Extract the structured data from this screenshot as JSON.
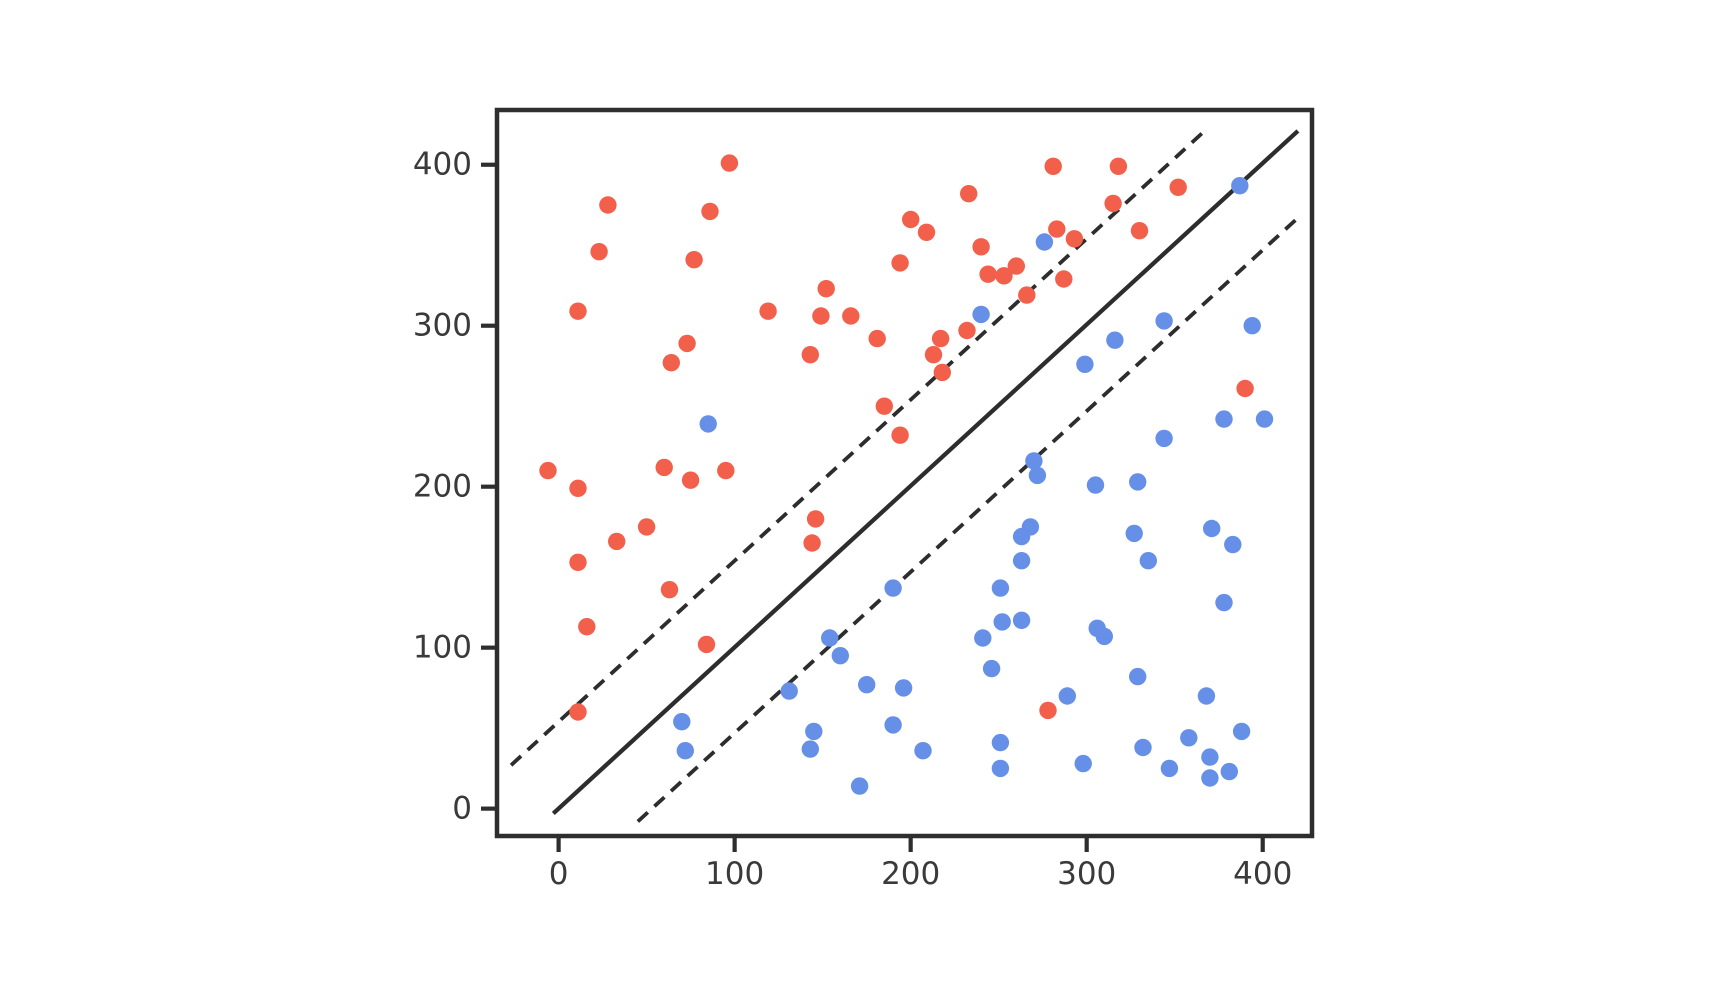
{
  "figure": {
    "background": "#ffffff"
  },
  "chart_data": {
    "type": "scatter",
    "title": "",
    "xlabel": "",
    "ylabel": "",
    "xlim": [
      -35,
      428
    ],
    "ylim": [
      -17,
      434
    ],
    "xticks": [
      0,
      100,
      200,
      300,
      400
    ],
    "yticks": [
      0,
      100,
      200,
      300,
      400
    ],
    "grid": false,
    "legend": "none",
    "axis_color": "#2E2E2E",
    "tick_label_color": "#3A3A3A",
    "tick_font_size": 31,
    "series": [
      {
        "name": "red-class",
        "color": "#F2604C",
        "marker": "circle",
        "marker_radius": 8.7,
        "points": [
          [
            97,
            401
          ],
          [
            28,
            375
          ],
          [
            86,
            371
          ],
          [
            23,
            346
          ],
          [
            77,
            341
          ],
          [
            200,
            366
          ],
          [
            194,
            339
          ],
          [
            11,
            309
          ],
          [
            152,
            323
          ],
          [
            149,
            306
          ],
          [
            166,
            306
          ],
          [
            119,
            309
          ],
          [
            181,
            292
          ],
          [
            73,
            289
          ],
          [
            64,
            277
          ],
          [
            143,
            282
          ],
          [
            185,
            250
          ],
          [
            194,
            232
          ],
          [
            -6,
            210
          ],
          [
            60,
            212
          ],
          [
            95,
            210
          ],
          [
            281,
            399
          ],
          [
            318,
            399
          ],
          [
            233,
            382
          ],
          [
            352,
            386
          ],
          [
            209,
            358
          ],
          [
            315,
            376
          ],
          [
            240,
            349
          ],
          [
            283,
            360
          ],
          [
            293,
            354
          ],
          [
            330,
            359
          ],
          [
            260,
            337
          ],
          [
            244,
            332
          ],
          [
            253,
            331
          ],
          [
            287,
            329
          ],
          [
            266,
            319
          ],
          [
            232,
            297
          ],
          [
            217,
            292
          ],
          [
            213,
            282
          ],
          [
            218,
            271
          ],
          [
            390,
            261
          ],
          [
            75,
            204
          ],
          [
            11,
            199
          ],
          [
            50,
            175
          ],
          [
            33,
            166
          ],
          [
            11,
            153
          ],
          [
            146,
            180
          ],
          [
            144,
            165
          ],
          [
            63,
            136
          ],
          [
            16,
            113
          ],
          [
            84,
            102
          ],
          [
            11,
            60
          ],
          [
            278,
            61
          ]
        ]
      },
      {
        "name": "blue-class",
        "color": "#6690E8",
        "marker": "circle",
        "marker_radius": 8.7,
        "points": [
          [
            85,
            239
          ],
          [
            387,
            387
          ],
          [
            276,
            352
          ],
          [
            240,
            307
          ],
          [
            344,
            303
          ],
          [
            316,
            291
          ],
          [
            299,
            276
          ],
          [
            394,
            300
          ],
          [
            378,
            242
          ],
          [
            401,
            242
          ],
          [
            344,
            230
          ],
          [
            190,
            137
          ],
          [
            154,
            106
          ],
          [
            160,
            95
          ],
          [
            131,
            73
          ],
          [
            175,
            77
          ],
          [
            196,
            75
          ],
          [
            145,
            48
          ],
          [
            143,
            37
          ],
          [
            190,
            52
          ],
          [
            171,
            14
          ],
          [
            70,
            54
          ],
          [
            72,
            36
          ],
          [
            270,
            216
          ],
          [
            272,
            207
          ],
          [
            305,
            201
          ],
          [
            329,
            203
          ],
          [
            268,
            175
          ],
          [
            263,
            169
          ],
          [
            263,
            154
          ],
          [
            327,
            171
          ],
          [
            335,
            154
          ],
          [
            371,
            174
          ],
          [
            383,
            164
          ],
          [
            251,
            137
          ],
          [
            378,
            128
          ],
          [
            252,
            116
          ],
          [
            263,
            117
          ],
          [
            241,
            106
          ],
          [
            306,
            112
          ],
          [
            310,
            107
          ],
          [
            246,
            87
          ],
          [
            329,
            82
          ],
          [
            289,
            70
          ],
          [
            368,
            70
          ],
          [
            388,
            48
          ],
          [
            358,
            44
          ],
          [
            207,
            36
          ],
          [
            251,
            41
          ],
          [
            251,
            25
          ],
          [
            298,
            28
          ],
          [
            332,
            38
          ],
          [
            347,
            25
          ],
          [
            370,
            32
          ],
          [
            370,
            19
          ],
          [
            381,
            23
          ]
        ]
      }
    ],
    "lines": [
      {
        "name": "identity-line",
        "style": "solid",
        "color": "#2D2D2D",
        "width": 4.3,
        "x1": -3,
        "y1": -3,
        "x2": 420,
        "y2": 421
      },
      {
        "name": "upper-margin-line",
        "style": "dashed",
        "color": "#2D2D2D",
        "width": 3.8,
        "x1": -27,
        "y1": 27,
        "x2": 367,
        "y2": 421
      },
      {
        "name": "lower-margin-line",
        "style": "dashed",
        "color": "#2D2D2D",
        "width": 3.8,
        "x1": 45,
        "y1": -8,
        "x2": 420,
        "y2": 367
      }
    ]
  }
}
